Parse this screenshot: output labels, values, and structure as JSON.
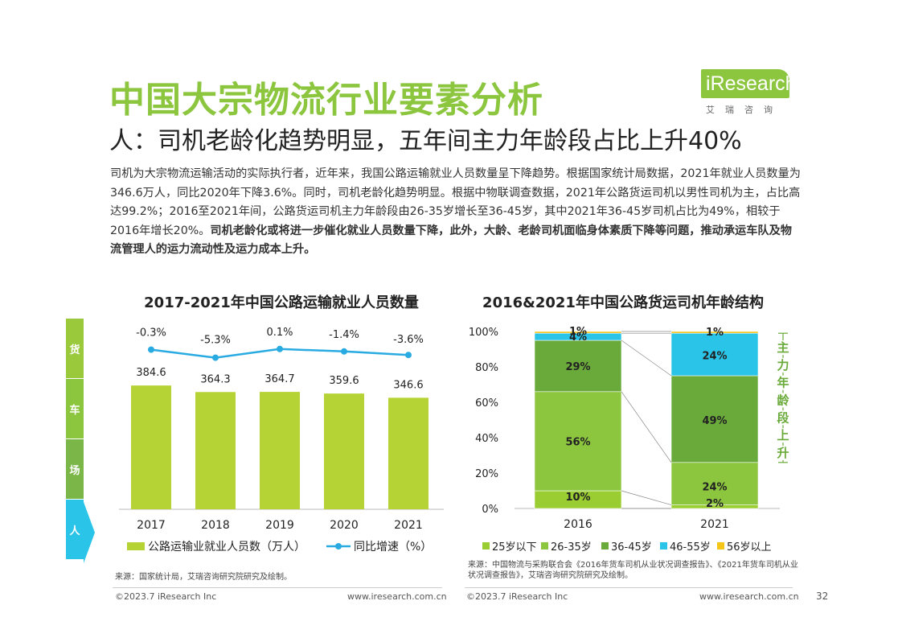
{
  "header": {
    "title": "中国大宗物流行业要素分析",
    "subtitle": "人：司机老龄化趋势明显，五年间主力年龄段占比上升40%",
    "logo_text": "iResearch",
    "logo_sub": "艾瑞咨询"
  },
  "intro": {
    "normal": "司机为大宗物流运输活动的实际执行者，近年来，我国公路运输就业人员数量呈下降趋势。根据国家统计局数据，2021年就业人员数量为346.6万人，同比2020年下降3.6%。同时，司机老龄化趋势明显。根据中物联调查数据，2021年公路货运司机以男性司机为主，占比高达99.2%；2016至2021年间，公路货运司机主力年龄段由26-35岁增长至36-45岁，其中2021年36-45岁司机占比为49%，相较于2016年增长20%。",
    "bold": "司机老龄化或将进一步催化就业人员数量下降，此外，大龄、老龄司机面临身体素质下降等问题，推动承运车队及物流管理人的运力流动性及运力成本上升。"
  },
  "side_bar": {
    "items": [
      "货",
      "车",
      "场",
      "人"
    ],
    "colors": [
      "#9bc93c",
      "#8cc63f",
      "#7ab648",
      "#29c4e8"
    ]
  },
  "colors": {
    "bar": "#b5d334",
    "line": "#29abe2",
    "age_25": "#9acd32",
    "age_26_35": "#8cc63f",
    "age_36_45": "#6aaa3a",
    "age_46_55": "#29c4e8",
    "age_56": "#f5c518"
  },
  "chart_data": [
    {
      "type": "bar",
      "title": "2017-2021年中国公路运输就业人员数量",
      "categories": [
        "2017",
        "2018",
        "2019",
        "2020",
        "2021"
      ],
      "series": [
        {
          "name": "公路运输业就业人员数（万人）",
          "values": [
            384.6,
            364.3,
            364.7,
            359.6,
            346.6
          ]
        },
        {
          "name": "同比增速（%）",
          "type": "line",
          "values": [
            -0.3,
            -5.3,
            0.1,
            -1.4,
            -3.6
          ]
        }
      ],
      "value_labels": [
        "384.6",
        "364.3",
        "364.7",
        "359.6",
        "346.6"
      ],
      "growth_labels": [
        "-0.3%",
        "-5.3%",
        "0.1%",
        "-1.4%",
        "-3.6%"
      ],
      "legend": [
        "公路运输业就业人员数（万人）",
        "同比增速（%）"
      ],
      "source": "来源：国家统计局，艾瑞咨询研究院研究及绘制。"
    },
    {
      "type": "bar",
      "stacked": true,
      "title": "2016&2021年中国公路货运司机年龄结构",
      "categories": [
        "2016",
        "2021"
      ],
      "ylim": [
        0,
        100
      ],
      "yticks": [
        "0%",
        "20%",
        "40%",
        "60%",
        "80%",
        "100%"
      ],
      "series": [
        {
          "name": "25岁以下",
          "values": [
            10,
            2
          ],
          "labels": [
            "10%",
            "2%"
          ]
        },
        {
          "name": "26-35岁",
          "values": [
            56,
            24
          ],
          "labels": [
            "56%",
            "24%"
          ]
        },
        {
          "name": "36-45岁",
          "values": [
            29,
            49
          ],
          "labels": [
            "29%",
            "49%"
          ]
        },
        {
          "name": "46-55岁",
          "values": [
            4,
            24
          ],
          "labels": [
            "4%",
            "24%"
          ]
        },
        {
          "name": "56岁以上",
          "values": [
            1,
            1
          ],
          "labels": [
            "1%",
            "1%"
          ]
        }
      ],
      "annotation": "主力年龄段上升",
      "source": "来源：中国物流与采购联合会《2016年货车司机从业状况调查报告》、《2021年货车司机从业状况调查报告》，艾瑞咨询研究院研究及绘制。"
    }
  ],
  "footer": {
    "left_copy": "©2023.7 iResearch Inc",
    "left_url": "www.iresearch.com.cn",
    "right_copy": "©2023.7 iResearch Inc",
    "right_url": "www.iresearch.com.cn",
    "page": "32"
  }
}
